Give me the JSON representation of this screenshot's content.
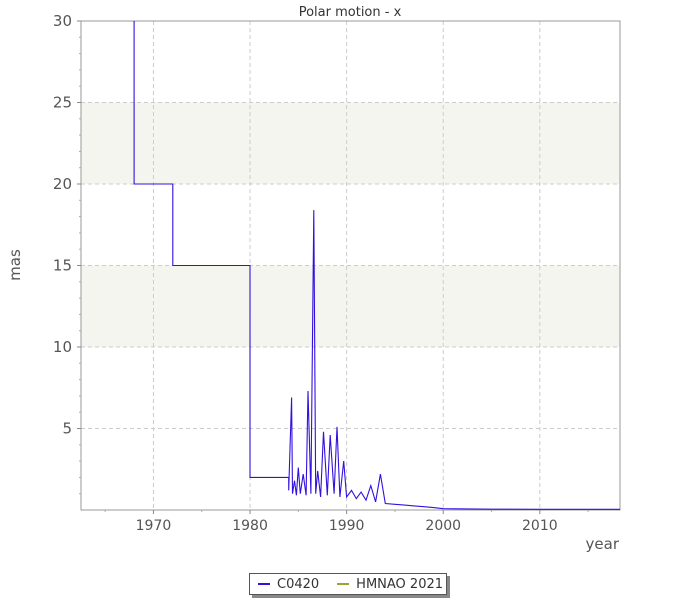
{
  "chart_data": {
    "type": "line",
    "title": "Polar motion - x",
    "xlabel": "year",
    "ylabel": "mas",
    "xlim": [
      1962.5,
      2018.3
    ],
    "ylim": [
      0,
      30
    ],
    "x_ticks": [
      1970,
      1980,
      1990,
      2000,
      2010
    ],
    "y_ticks": [
      5,
      10,
      15,
      20,
      25,
      30
    ],
    "grid": true,
    "bands": [
      [
        10,
        15
      ],
      [
        20,
        25
      ]
    ],
    "legend_position": "bottom-center",
    "series": [
      {
        "name": "C0420",
        "color": "#3311dd",
        "style": "step",
        "x": [
          1968.0,
          1968.0,
          1972.0,
          1972.0,
          1980.0,
          1980.0,
          1984.0,
          1984.0,
          1984.3,
          1984.4,
          1984.6,
          1984.8,
          1985.0,
          1985.2,
          1985.5,
          1985.8,
          1986.0,
          1986.3,
          1986.6,
          1986.8,
          1987.0,
          1987.3,
          1987.6,
          1988.0,
          1988.3,
          1988.7,
          1989.0,
          1989.3,
          1989.7,
          1990.0,
          1990.5,
          1991.0,
          1991.5,
          1992.0,
          1992.5,
          1993.0,
          1993.5,
          1994.0,
          1995.0,
          1996.0,
          1997.0,
          1998.0,
          1999.0,
          2000.0,
          2005.0,
          2010.0,
          2018.3
        ],
        "y": [
          30.0,
          20.0,
          20.0,
          15.0,
          15.0,
          2.0,
          2.0,
          1.2,
          6.9,
          1.0,
          1.8,
          0.9,
          2.6,
          1.0,
          2.2,
          0.9,
          7.3,
          1.0,
          18.4,
          1.0,
          2.4,
          0.8,
          4.8,
          0.9,
          4.6,
          1.0,
          5.1,
          0.8,
          3.0,
          0.8,
          1.2,
          0.7,
          1.1,
          0.6,
          1.5,
          0.5,
          2.2,
          0.4,
          0.35,
          0.3,
          0.25,
          0.2,
          0.15,
          0.08,
          0.05,
          0.04,
          0.04
        ]
      },
      {
        "name": "HMNAO 2021",
        "color": "#9aa533",
        "style": "line",
        "x": [],
        "y": []
      }
    ]
  }
}
